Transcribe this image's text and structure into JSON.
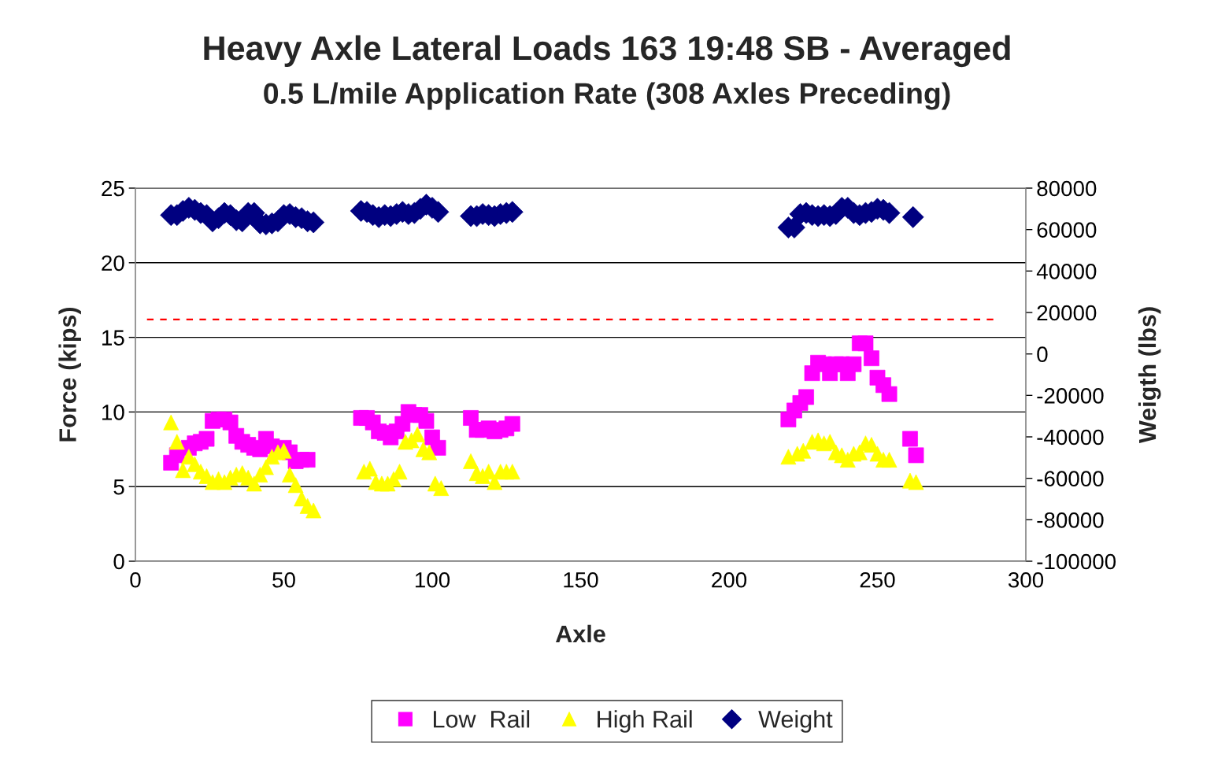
{
  "chart_data": {
    "type": "scatter",
    "title": "Heavy Axle Lateral Loads 163 19:48 SB - Averaged",
    "subtitle": "0.5 L/mile Application Rate (308 Axles Preceding)",
    "xlabel": "Axle",
    "ylabel": "Force (kips)",
    "y2label": "Weigth (lbs)",
    "xlim": [
      0,
      300
    ],
    "xticks": [
      0,
      50,
      100,
      150,
      200,
      250,
      300
    ],
    "ylim": [
      0,
      25
    ],
    "yticks": [
      0,
      5,
      10,
      15,
      20,
      25
    ],
    "y2lim": [
      -100000,
      80000
    ],
    "y2ticks": [
      -100000,
      -80000,
      -60000,
      -40000,
      -20000,
      0,
      20000,
      40000,
      60000,
      80000
    ],
    "grid": "y",
    "legend": "bottom",
    "ref_lines": [
      {
        "axis": "y",
        "value": 16.2,
        "color": "#ff0000",
        "line_style": "dashed"
      }
    ],
    "series": [
      {
        "name": "Low  Rail",
        "color": "#ff00ff",
        "marker": "square",
        "x": [
          12,
          14,
          16,
          18,
          20,
          22,
          24,
          26,
          28,
          30,
          32,
          34,
          36,
          38,
          40,
          42,
          44,
          46,
          48,
          50,
          52,
          54,
          56,
          58,
          76,
          78,
          80,
          82,
          84,
          86,
          88,
          90,
          92,
          94,
          96,
          98,
          100,
          102,
          113,
          115,
          117,
          119,
          121,
          123,
          125,
          127,
          220,
          222,
          224,
          226,
          228,
          230,
          232,
          234,
          236,
          238,
          240,
          242,
          244,
          246,
          248,
          250,
          252,
          254,
          261,
          263
        ],
        "values": [
          6.6,
          7.1,
          null,
          7.6,
          7.9,
          8.0,
          8.2,
          9.4,
          9.5,
          9.5,
          9.3,
          8.4,
          8.0,
          7.8,
          7.6,
          7.5,
          8.2,
          7.7,
          null,
          7.6,
          7.3,
          6.7,
          6.8,
          6.8,
          9.6,
          9.6,
          9.3,
          8.7,
          8.6,
          8.3,
          8.7,
          9.2,
          10.0,
          9.8,
          9.8,
          9.4,
          8.3,
          7.6,
          9.6,
          8.8,
          8.8,
          8.9,
          8.7,
          8.8,
          8.9,
          9.2,
          9.5,
          10.1,
          10.6,
          11.0,
          12.6,
          13.3,
          13.2,
          12.6,
          13.2,
          13.2,
          12.6,
          13.2,
          14.6,
          14.6,
          13.6,
          12.3,
          11.8,
          11.2,
          8.2,
          7.1
        ]
      },
      {
        "name": "High Rail",
        "color": "#ffff00",
        "marker": "triangle",
        "x": [
          12,
          14,
          16,
          18,
          20,
          22,
          24,
          26,
          28,
          30,
          32,
          34,
          36,
          38,
          40,
          42,
          44,
          46,
          48,
          50,
          52,
          54,
          56,
          58,
          60,
          77,
          79,
          81,
          83,
          85,
          87,
          89,
          91,
          93,
          95,
          97,
          99,
          101,
          103,
          113,
          115,
          117,
          119,
          121,
          123,
          125,
          127,
          220,
          223,
          225,
          228,
          230,
          232,
          234,
          236,
          238,
          240,
          242,
          244,
          246,
          248,
          250,
          252,
          254,
          261,
          263
        ],
        "values": [
          9.3,
          8.0,
          6.1,
          7.0,
          6.5,
          6.0,
          5.7,
          5.3,
          5.5,
          5.3,
          5.6,
          5.8,
          5.9,
          5.6,
          5.2,
          5.8,
          6.3,
          7.0,
          7.3,
          7.4,
          5.8,
          5.1,
          4.2,
          3.7,
          3.4,
          6.0,
          6.2,
          5.3,
          5.2,
          5.2,
          5.5,
          6.0,
          8.0,
          8.1,
          8.5,
          7.5,
          7.3,
          5.2,
          4.9,
          6.7,
          5.9,
          5.7,
          6.0,
          5.3,
          6.0,
          6.0,
          6.0,
          7.0,
          7.2,
          7.4,
          8.0,
          8.1,
          7.9,
          8.0,
          7.3,
          7.1,
          6.8,
          7.2,
          7.3,
          7.9,
          7.8,
          7.2,
          6.8,
          6.8,
          5.4,
          5.3
        ]
      },
      {
        "name": "Weight",
        "color": "#000080",
        "marker": "diamond",
        "axis": "y2",
        "x": [
          12,
          14,
          16,
          18,
          20,
          22,
          24,
          26,
          28,
          30,
          32,
          34,
          36,
          38,
          40,
          42,
          44,
          46,
          48,
          50,
          52,
          54,
          56,
          58,
          60,
          76,
          78,
          80,
          82,
          84,
          86,
          88,
          90,
          92,
          94,
          96,
          98,
          100,
          102,
          113,
          115,
          117,
          119,
          121,
          123,
          125,
          127,
          220,
          222,
          224,
          226,
          228,
          230,
          232,
          234,
          236,
          238,
          240,
          242,
          244,
          246,
          248,
          250,
          252,
          254,
          262
        ],
        "values": [
          67000,
          67000,
          69000,
          70500,
          69500,
          68000,
          67000,
          64000,
          65500,
          68000,
          67000,
          64500,
          64000,
          68000,
          68000,
          63000,
          62500,
          63000,
          64000,
          67000,
          67500,
          66000,
          65500,
          64000,
          63500,
          69000,
          68500,
          67000,
          66000,
          67000,
          66500,
          67500,
          68500,
          67500,
          68000,
          70000,
          72000,
          70500,
          68500,
          66500,
          66500,
          67500,
          67000,
          66500,
          67500,
          68000,
          68500,
          61000,
          61000,
          67500,
          68000,
          67000,
          66500,
          67000,
          66500,
          67500,
          70500,
          70500,
          68000,
          67000,
          68000,
          68500,
          70000,
          69500,
          68000,
          66000
        ]
      }
    ]
  }
}
